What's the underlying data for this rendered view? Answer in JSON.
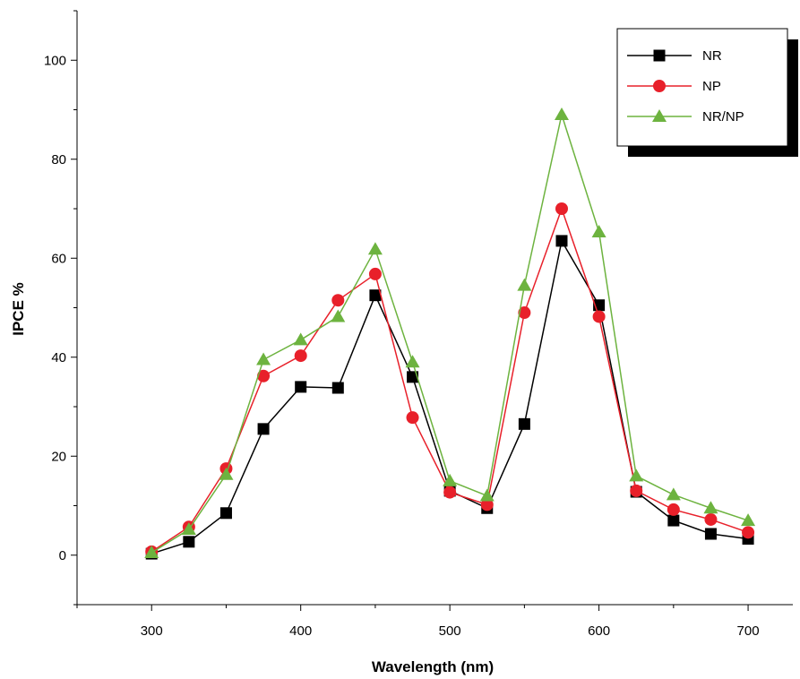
{
  "chart_data": {
    "type": "line",
    "xlabel": "Wavelength (nm)",
    "ylabel": "IPCE %",
    "xlim": [
      250,
      730
    ],
    "ylim": [
      -10,
      110
    ],
    "x_ticks": [
      300,
      400,
      500,
      600,
      700
    ],
    "y_ticks": [
      0,
      20,
      40,
      60,
      80,
      100
    ],
    "legend_position": "top-right",
    "grid": false,
    "x": [
      300,
      325,
      350,
      375,
      400,
      425,
      450,
      475,
      500,
      525,
      550,
      575,
      600,
      625,
      650,
      675,
      700
    ],
    "series": [
      {
        "name": "NR",
        "color": "#000000",
        "marker": "square",
        "values": [
          0.3,
          2.7,
          8.5,
          25.5,
          34.0,
          33.8,
          52.5,
          36.0,
          13.0,
          9.5,
          26.5,
          63.5,
          50.5,
          12.8,
          7.0,
          4.3,
          3.3
        ]
      },
      {
        "name": "NP",
        "color": "#e8202a",
        "marker": "circle",
        "values": [
          0.7,
          5.7,
          17.5,
          36.2,
          40.3,
          51.5,
          56.8,
          27.8,
          12.7,
          10.2,
          49.0,
          70.0,
          48.2,
          13.0,
          9.2,
          7.2,
          4.6
        ]
      },
      {
        "name": "NR/NP",
        "color": "#6db33f",
        "marker": "triangle",
        "values": [
          0.5,
          5.2,
          16.3,
          39.5,
          43.5,
          48.2,
          61.8,
          39.0,
          15.0,
          12.0,
          54.5,
          89.0,
          65.3,
          16.0,
          12.2,
          9.5,
          7.0
        ]
      }
    ]
  }
}
